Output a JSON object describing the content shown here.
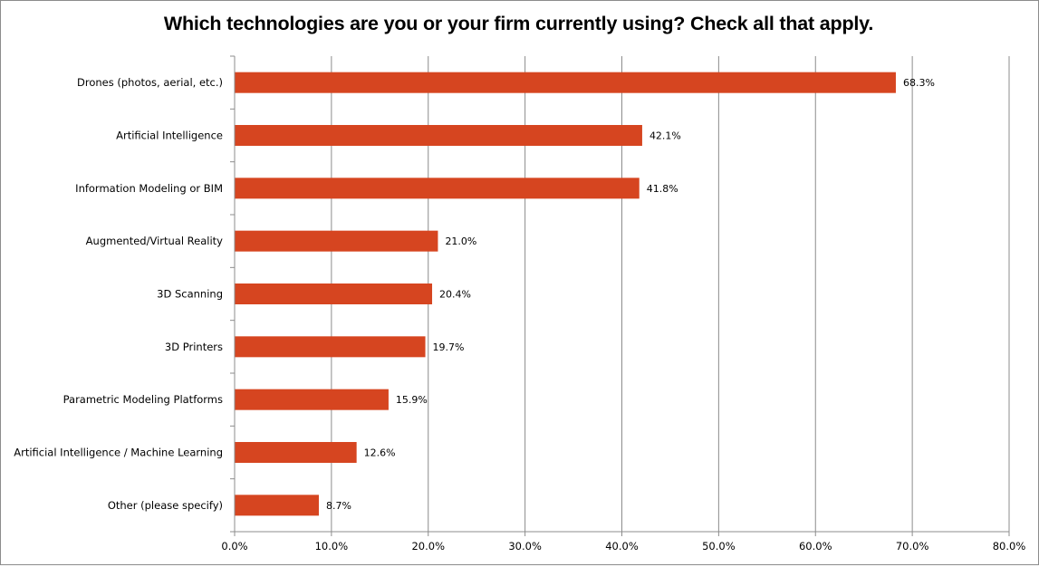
{
  "chart_data": {
    "type": "bar",
    "orientation": "horizontal",
    "title": "Which technologies are you or your firm currently using? Check all that apply.",
    "categories": [
      "Drones (photos, aerial, etc.)",
      "Artificial Intelligence",
      "Information Modeling or BIM",
      "Augmented/Virtual Reality",
      "3D Scanning",
      "3D Printers",
      "Parametric Modeling Platforms",
      "Artificial Intelligence / Machine Learning",
      "Other (please specify)"
    ],
    "values": [
      68.3,
      42.1,
      41.8,
      21.0,
      20.4,
      19.7,
      15.9,
      12.6,
      8.7
    ],
    "data_labels": [
      "68.3%",
      "42.1%",
      "41.8%",
      "21.0%",
      "20.4%",
      "19.7%",
      "15.9%",
      "12.6%",
      "8.7%"
    ],
    "xlim": [
      0,
      80
    ],
    "x_ticks": [
      0,
      10,
      20,
      30,
      40,
      50,
      60,
      70,
      80
    ],
    "x_tick_labels": [
      "0.0%",
      "10.0%",
      "20.0%",
      "30.0%",
      "40.0%",
      "50.0%",
      "60.0%",
      "70.0%",
      "80.0%"
    ],
    "bar_color": "#d64520",
    "grid": true,
    "legend": "none"
  }
}
